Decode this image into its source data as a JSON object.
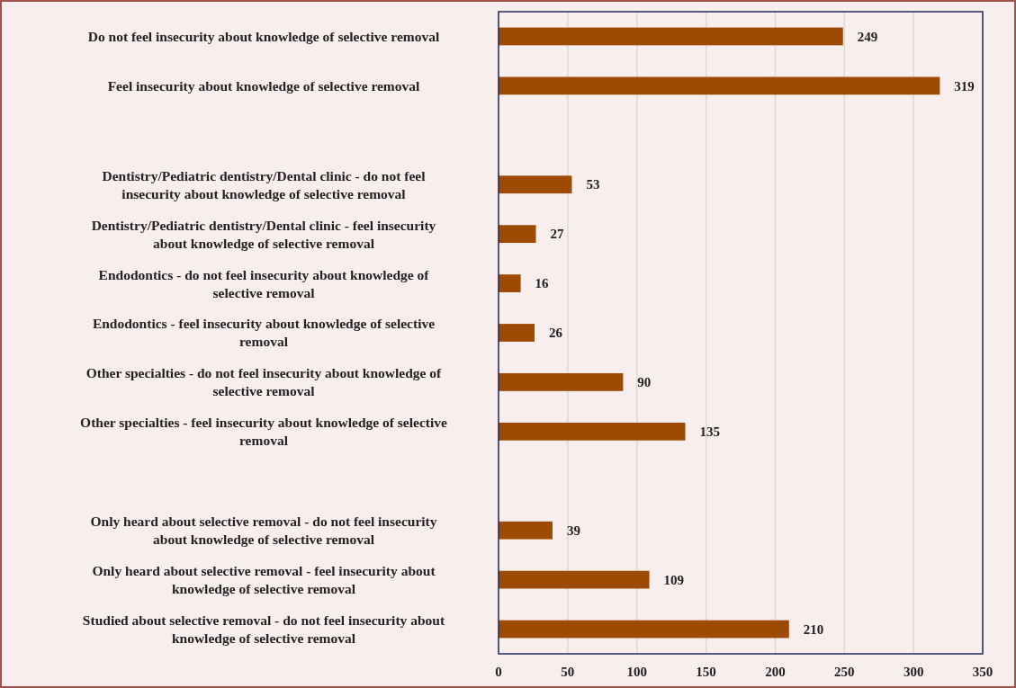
{
  "chart_data": {
    "type": "bar",
    "orientation": "horizontal",
    "categories": [
      "Do not feel insecurity about knowledge of selective removal",
      "Feel insecurity about knowledge of selective removal",
      null,
      "Dentistry/Pediatric dentistry/Dental clinic - do not feel insecurity about knowledge of selective removal",
      "Dentistry/Pediatric dentistry/Dental clinic - feel insecurity about knowledge of selective removal",
      "Endodontics - do not feel insecurity about knowledge of selective removal",
      "Endodontics - feel insecurity about knowledge of selective removal",
      "Other specialties - do not feel insecurity about knowledge of selective removal",
      "Other specialties - feel insecurity about knowledge of selective removal",
      null,
      "Only heard about selective removal - do not feel insecurity about knowledge of selective removal",
      "Only heard about selective removal - feel insecurity about knowledge of selective removal",
      "Studied about selective removal - do not feel insecurity about knowledge of selective removal"
    ],
    "values": [
      249,
      319,
      null,
      53,
      27,
      16,
      26,
      90,
      135,
      null,
      39,
      109,
      210
    ],
    "color": "#9c4a04",
    "xlim": [
      0,
      350
    ],
    "xticks": [
      0,
      50,
      100,
      150,
      200,
      250,
      300,
      350
    ],
    "grid": "x",
    "data_labels": true
  }
}
